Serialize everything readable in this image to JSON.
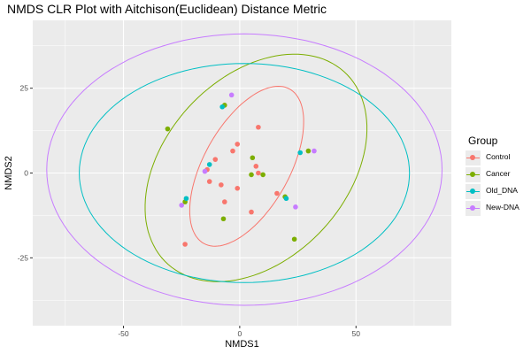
{
  "chart_data": {
    "type": "scatter",
    "title": "NMDS CLR Plot with Aitchison(Euclidean) Distance Metric",
    "xlabel": "NMDS1",
    "ylabel": "NMDS2",
    "xlim": [
      -89,
      91
    ],
    "ylim": [
      -45,
      45
    ],
    "xticks": [
      -50,
      0,
      50
    ],
    "yticks": [
      -25,
      0,
      25
    ],
    "grid": true,
    "legend_title": "Group",
    "legend_position": "right",
    "series": [
      {
        "name": "Control",
        "color": "#F8766D",
        "points": [
          [
            -1,
            8.5
          ],
          [
            8,
            13.5
          ],
          [
            -3,
            6.5
          ],
          [
            -10.5,
            4
          ],
          [
            7,
            2
          ],
          [
            -14,
            1
          ],
          [
            -13,
            -2.5
          ],
          [
            -8,
            -3.5
          ],
          [
            -1,
            -4.5
          ],
          [
            8,
            0
          ],
          [
            16,
            -6
          ],
          [
            -6.5,
            -8.5
          ],
          [
            5,
            -11.5
          ],
          [
            -23.5,
            -21
          ]
        ],
        "ellipse": {
          "cx": 3,
          "cy": 2,
          "rx": 30,
          "ry": 16,
          "angle_deg": 43
        }
      },
      {
        "name": "Cancer",
        "color": "#7CAE00",
        "points": [
          [
            -6.5,
            20
          ],
          [
            -31,
            13
          ],
          [
            5.5,
            4.5
          ],
          [
            29.5,
            6.5
          ],
          [
            5,
            -0.5
          ],
          [
            10,
            -0.5
          ],
          [
            -23.5,
            -8.5
          ],
          [
            -7,
            -13.5
          ],
          [
            23.5,
            -19.5
          ],
          [
            19.5,
            -7
          ]
        ],
        "ellipse": {
          "cx": 7,
          "cy": 1.5,
          "rx": 50,
          "ry": 30,
          "angle_deg": 22
        }
      },
      {
        "name": "Old_DNA",
        "color": "#00BFC4",
        "points": [
          [
            -7.5,
            19.5
          ],
          [
            26,
            6
          ],
          [
            -13,
            2.5
          ],
          [
            -23,
            -7.5
          ],
          [
            20,
            -7.5
          ]
        ],
        "ellipse": {
          "cx": 2,
          "cy": 0,
          "rx": 71,
          "ry": 32.3,
          "angle_deg": 0
        }
      },
      {
        "name": "New-DNA",
        "color": "#C77CFF",
        "points": [
          [
            -3.5,
            23
          ],
          [
            32,
            6.5
          ],
          [
            -15,
            0.5
          ],
          [
            -25,
            -9.5
          ],
          [
            24,
            -10
          ]
        ],
        "ellipse": {
          "cx": 2,
          "cy": 1,
          "rx": 85,
          "ry": 40,
          "angle_deg": 0
        }
      }
    ]
  }
}
